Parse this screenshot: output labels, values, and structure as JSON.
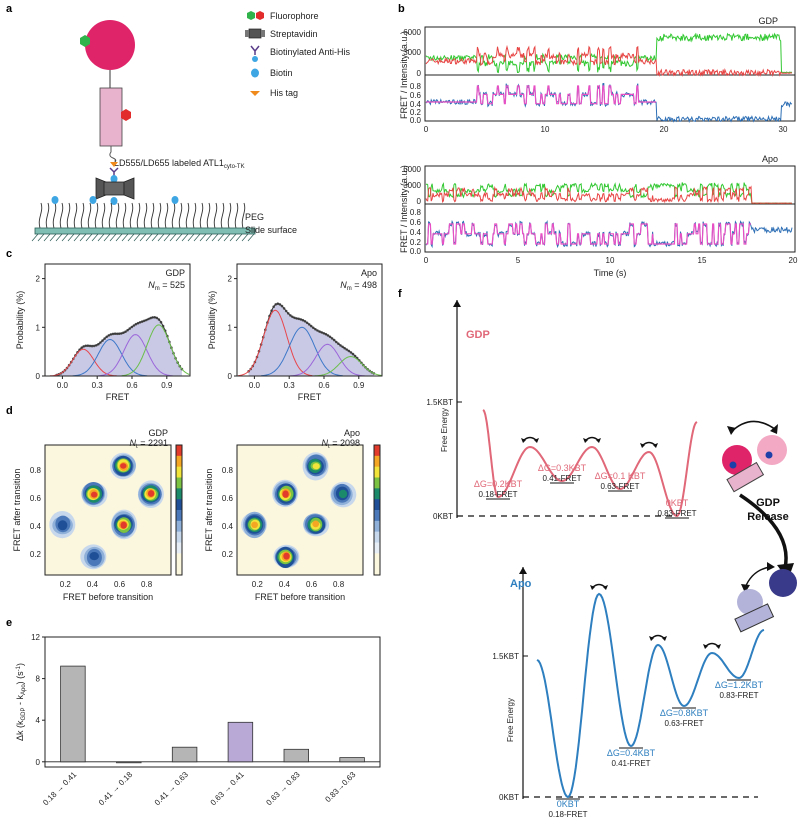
{
  "panels": {
    "a": "a",
    "b": "b",
    "c": "c",
    "d": "d",
    "e": "e",
    "f": "f"
  },
  "legend": {
    "fluorophore": "Fluorophore",
    "streptavidin": "Streptavidin",
    "anti_his": "Biotinylated Anti-His",
    "biotin": "Biotin",
    "his_tag": "His tag"
  },
  "schematic": {
    "protein_label": "LD555/LD655 labeled ATL1",
    "protein_sub": "cyto-TK",
    "peg": "PEG",
    "surface": "Slide surface"
  },
  "traces": {
    "gdp": {
      "name": "GDP",
      "y_intensity": "FRET / Intensity (a.u.)",
      "int_ticks": [
        "6000",
        "3000",
        "0"
      ],
      "fret_ticks": [
        "0.8",
        "0.6",
        "0.4",
        "0.2",
        "0.0"
      ],
      "x_ticks": [
        "0",
        "10",
        "20",
        "30"
      ]
    },
    "apo": {
      "name": "Apo",
      "y_intensity": "FRET / Intensity (a.u.)",
      "int_ticks": [
        "6000",
        "3000",
        "0"
      ],
      "fret_ticks": [
        "0.8",
        "0.6",
        "0.4",
        "0.2",
        "0.0"
      ],
      "x_ticks": [
        "0",
        "5",
        "10",
        "15",
        "20"
      ],
      "xlabel": "Time (s)"
    }
  },
  "chart_data": [
    {
      "type": "area",
      "title": "GDP",
      "n_label": "N",
      "n_sub": "m",
      "n_value": "= 525",
      "xlabel": "FRET",
      "ylabel": "Probability (%)",
      "x_ticks": [
        "0.0",
        "0.3",
        "0.6",
        "0.9"
      ],
      "y_ticks": [
        "0",
        "1",
        "2"
      ],
      "xlim": [
        -0.15,
        1.1
      ],
      "ylim": [
        0,
        2.3
      ],
      "components": [
        {
          "center": 0.18,
          "amp": 0.55,
          "sigma": 0.09,
          "color": "#e8474c"
        },
        {
          "center": 0.41,
          "amp": 0.75,
          "sigma": 0.1,
          "color": "#3d78c8"
        },
        {
          "center": 0.63,
          "amp": 0.85,
          "sigma": 0.1,
          "color": "#9b66d9"
        },
        {
          "center": 0.83,
          "amp": 1.05,
          "sigma": 0.1,
          "color": "#6bbf4a"
        }
      ]
    },
    {
      "type": "area",
      "title": "Apo",
      "n_label": "N",
      "n_sub": "m",
      "n_value": "= 498",
      "xlabel": "FRET",
      "ylabel": "Probability (%)",
      "x_ticks": [
        "0.0",
        "0.3",
        "0.6",
        "0.9"
      ],
      "y_ticks": [
        "0",
        "1",
        "2"
      ],
      "xlim": [
        -0.15,
        1.1
      ],
      "ylim": [
        0,
        2.3
      ],
      "components": [
        {
          "center": 0.18,
          "amp": 1.35,
          "sigma": 0.1,
          "color": "#e8474c"
        },
        {
          "center": 0.41,
          "amp": 1.0,
          "sigma": 0.11,
          "color": "#3d78c8"
        },
        {
          "center": 0.63,
          "amp": 0.65,
          "sigma": 0.1,
          "color": "#9b66d9"
        },
        {
          "center": 0.83,
          "amp": 0.4,
          "sigma": 0.1,
          "color": "#6bbf4a"
        }
      ]
    },
    {
      "type": "heatmap",
      "title": "GDP",
      "n_label": "N",
      "n_sub": "t",
      "n_value": "= 2291",
      "xlabel": "FRET before transition",
      "ylabel": "FRET after transition",
      "x_ticks": [
        "0.2",
        "0.4",
        "0.6",
        "0.8"
      ],
      "y_ticks": [
        "0.2",
        "0.4",
        "0.6",
        "0.8"
      ],
      "xlim": [
        0.05,
        0.98
      ],
      "ylim": [
        0.05,
        0.98
      ],
      "peaks": [
        {
          "x": 0.63,
          "y": 0.83,
          "intensity": 1.0
        },
        {
          "x": 0.41,
          "y": 0.63,
          "intensity": 1.0
        },
        {
          "x": 0.83,
          "y": 0.63,
          "intensity": 0.95
        },
        {
          "x": 0.63,
          "y": 0.41,
          "intensity": 1.0
        },
        {
          "x": 0.18,
          "y": 0.41,
          "intensity": 0.45
        },
        {
          "x": 0.41,
          "y": 0.18,
          "intensity": 0.4
        }
      ]
    },
    {
      "type": "heatmap",
      "title": "Apo",
      "n_label": "N",
      "n_sub": "t",
      "n_value": "= 2098",
      "xlabel": "FRET before transition",
      "ylabel": "FRET after transition",
      "x_ticks": [
        "0.2",
        "0.4",
        "0.6",
        "0.8"
      ],
      "y_ticks": [
        "0.2",
        "0.4",
        "0.6",
        "0.8"
      ],
      "xlim": [
        0.05,
        0.98
      ],
      "ylim": [
        0.05,
        0.98
      ],
      "peaks": [
        {
          "x": 0.63,
          "y": 0.83,
          "intensity": 0.75
        },
        {
          "x": 0.41,
          "y": 0.63,
          "intensity": 0.95
        },
        {
          "x": 0.83,
          "y": 0.63,
          "intensity": 0.55
        },
        {
          "x": 0.63,
          "y": 0.41,
          "intensity": 0.9
        },
        {
          "x": 0.18,
          "y": 0.41,
          "intensity": 0.9
        },
        {
          "x": 0.41,
          "y": 0.18,
          "intensity": 1.0
        }
      ]
    },
    {
      "type": "bar",
      "title": "",
      "categories": [
        "0.18 → 0.41",
        "0.41 → 0.18",
        "0.41 → 0.63",
        "0.63 → 0.41",
        "0.63 → 0.83",
        "0.83→0.63"
      ],
      "values": [
        9.2,
        -0.1,
        1.4,
        3.8,
        1.2,
        0.4
      ],
      "colors": [
        "#b5b5b5",
        "#b5b5b5",
        "#b5b5b5",
        "#b9a9d6",
        "#b5b5b5",
        "#b5b5b5"
      ],
      "ylabel": "Δk (k",
      "ylabel_sub1": "GDP",
      "ylabel_mid": " - k",
      "ylabel_sub2": "Apo",
      "ylabel_end": ") (s",
      "ylabel_sup": "-1",
      "ylabel_close": ")",
      "y_ticks": [
        "0",
        "4",
        "8",
        "12"
      ],
      "ylim": [
        -0.5,
        12
      ]
    }
  ],
  "energy": {
    "ylabel": "Free Energy",
    "gdp": {
      "title": "GDP",
      "color": "#e06878",
      "tick_high": "1.5KBT",
      "tick_zero": "0KBT",
      "states": [
        {
          "dg": "ΔG=0.2KBT",
          "fret": "0.18-FRET"
        },
        {
          "dg": "ΔG=0.3KBT",
          "fret": "0.41-FRET"
        },
        {
          "dg": "ΔG=0.1 KBT",
          "fret": "0.63-FRET"
        },
        {
          "dg": "0KBT",
          "fret": "0.83-FRET"
        }
      ]
    },
    "apo": {
      "title": "Apo",
      "color": "#2e7fbf",
      "tick_high": "1.5KBT",
      "tick_zero": "0KBT",
      "states": [
        {
          "dg": "0KBT",
          "fret": "0.18-FRET"
        },
        {
          "dg": "ΔG=0.4KBT",
          "fret": "0.41-FRET"
        },
        {
          "dg": "ΔG=0.8KBT",
          "fret": "0.63-FRET"
        },
        {
          "dg": "ΔG=1.2KBT",
          "fret": "0.83-FRET"
        }
      ]
    },
    "release_line1": "GDP",
    "release_line2": "Release"
  }
}
